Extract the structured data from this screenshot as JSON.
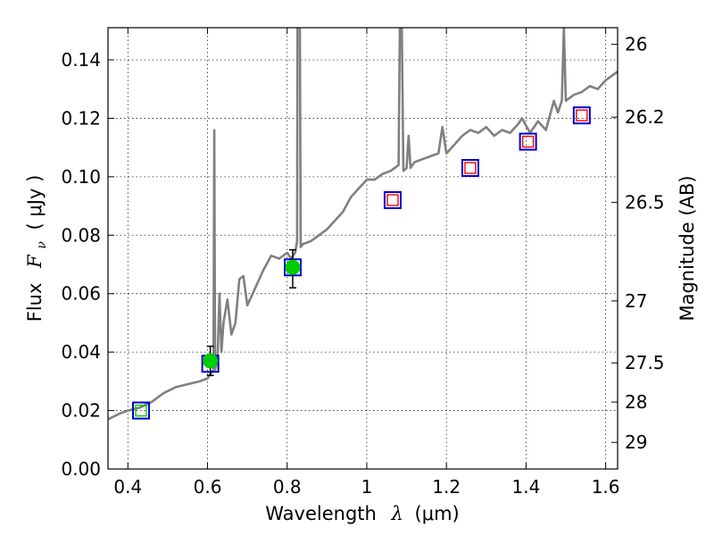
{
  "chart_data": {
    "type": "scatter",
    "xlabel_text": "Wavelength",
    "xlabel_symbol": "λ",
    "xlabel_unit": "(μm)",
    "ylabel_text": "Flux",
    "ylabel_symbol": "F",
    "ylabel_subscript": "ν",
    "ylabel_unit": "( μJy )",
    "y2label": "Magnitude (AB)",
    "xlim": [
      0.35,
      1.63
    ],
    "ylim": [
      0.0,
      0.151
    ],
    "grid": true,
    "x_ticks": [
      {
        "value": 0.4,
        "label": "0.4"
      },
      {
        "value": 0.6,
        "label": "0.6"
      },
      {
        "value": 0.8,
        "label": "0.8"
      },
      {
        "value": 1.0,
        "label": "1"
      },
      {
        "value": 1.2,
        "label": "1.2"
      },
      {
        "value": 1.4,
        "label": "1.4"
      },
      {
        "value": 1.6,
        "label": "1.6"
      }
    ],
    "y_ticks": [
      {
        "value": 0.0,
        "label": "0.00"
      },
      {
        "value": 0.02,
        "label": "0.02"
      },
      {
        "value": 0.04,
        "label": "0.04"
      },
      {
        "value": 0.06,
        "label": "0.06"
      },
      {
        "value": 0.08,
        "label": "0.08"
      },
      {
        "value": 0.1,
        "label": "0.10"
      },
      {
        "value": 0.12,
        "label": "0.12"
      },
      {
        "value": 0.14,
        "label": "0.14"
      }
    ],
    "y2_ticks": [
      {
        "flux": 0.1453,
        "label": "26"
      },
      {
        "flux": 0.1204,
        "label": "26.2"
      },
      {
        "flux": 0.0912,
        "label": "26.5"
      },
      {
        "flux": 0.0575,
        "label": "27"
      },
      {
        "flux": 0.0363,
        "label": "27.5"
      },
      {
        "flux": 0.0229,
        "label": "28"
      },
      {
        "flux": 0.0091,
        "label": "29"
      }
    ],
    "series": [
      {
        "name": "model spectrum",
        "kind": "line",
        "color": "#808080",
        "points": [
          [
            0.35,
            0.017
          ],
          [
            0.38,
            0.019
          ],
          [
            0.4,
            0.02
          ],
          [
            0.43,
            0.021
          ],
          [
            0.46,
            0.023
          ],
          [
            0.49,
            0.026
          ],
          [
            0.52,
            0.028
          ],
          [
            0.55,
            0.029
          ],
          [
            0.58,
            0.03
          ],
          [
            0.6,
            0.031
          ],
          [
            0.61,
            0.033
          ],
          [
            0.615,
            0.034
          ],
          [
            0.617,
            0.116
          ],
          [
            0.619,
            0.034
          ],
          [
            0.625,
            0.037
          ],
          [
            0.63,
            0.06
          ],
          [
            0.635,
            0.04
          ],
          [
            0.64,
            0.05
          ],
          [
            0.65,
            0.058
          ],
          [
            0.66,
            0.046
          ],
          [
            0.67,
            0.05
          ],
          [
            0.68,
            0.065
          ],
          [
            0.69,
            0.066
          ],
          [
            0.7,
            0.056
          ],
          [
            0.72,
            0.062
          ],
          [
            0.74,
            0.068
          ],
          [
            0.76,
            0.073
          ],
          [
            0.78,
            0.072
          ],
          [
            0.8,
            0.074
          ],
          [
            0.81,
            0.072
          ],
          [
            0.82,
            0.074
          ],
          [
            0.825,
            0.078
          ],
          [
            0.826,
            0.151
          ],
          [
            0.832,
            0.151
          ],
          [
            0.834,
            0.076
          ],
          [
            0.84,
            0.077
          ],
          [
            0.86,
            0.078
          ],
          [
            0.88,
            0.08
          ],
          [
            0.9,
            0.082
          ],
          [
            0.92,
            0.085
          ],
          [
            0.94,
            0.088
          ],
          [
            0.96,
            0.093
          ],
          [
            0.98,
            0.096
          ],
          [
            1.0,
            0.099
          ],
          [
            1.02,
            0.099
          ],
          [
            1.04,
            0.101
          ],
          [
            1.06,
            0.102
          ],
          [
            1.08,
            0.104
          ],
          [
            1.083,
            0.151
          ],
          [
            1.088,
            0.151
          ],
          [
            1.092,
            0.102
          ],
          [
            1.1,
            0.103
          ],
          [
            1.105,
            0.114
          ],
          [
            1.11,
            0.103
          ],
          [
            1.12,
            0.105
          ],
          [
            1.14,
            0.106
          ],
          [
            1.16,
            0.107
          ],
          [
            1.18,
            0.108
          ],
          [
            1.19,
            0.117
          ],
          [
            1.2,
            0.108
          ],
          [
            1.22,
            0.111
          ],
          [
            1.24,
            0.114
          ],
          [
            1.26,
            0.116
          ],
          [
            1.28,
            0.115
          ],
          [
            1.3,
            0.117
          ],
          [
            1.32,
            0.114
          ],
          [
            1.34,
            0.116
          ],
          [
            1.36,
            0.115
          ],
          [
            1.38,
            0.118
          ],
          [
            1.39,
            0.12
          ],
          [
            1.41,
            0.115
          ],
          [
            1.43,
            0.119
          ],
          [
            1.45,
            0.116
          ],
          [
            1.47,
            0.126
          ],
          [
            1.48,
            0.122
          ],
          [
            1.49,
            0.126
          ],
          [
            1.495,
            0.151
          ],
          [
            1.5,
            0.126
          ],
          [
            1.52,
            0.128
          ],
          [
            1.54,
            0.129
          ],
          [
            1.56,
            0.131
          ],
          [
            1.58,
            0.13
          ],
          [
            1.6,
            0.133
          ],
          [
            1.63,
            0.136
          ]
        ]
      },
      {
        "name": "blue squares",
        "kind": "marker",
        "marker": "square",
        "color": "#0000cc",
        "points": [
          [
            0.433,
            0.02
          ],
          [
            0.607,
            0.036
          ],
          [
            0.814,
            0.069
          ],
          [
            1.065,
            0.092
          ],
          [
            1.26,
            0.103
          ],
          [
            1.405,
            0.112
          ],
          [
            1.54,
            0.121
          ]
        ]
      },
      {
        "name": "red squares",
        "kind": "marker",
        "marker": "square-small",
        "color": "#ff0000",
        "points": [
          [
            1.065,
            0.092
          ],
          [
            1.26,
            0.103
          ],
          [
            1.405,
            0.112
          ],
          [
            1.54,
            0.121
          ]
        ]
      },
      {
        "name": "green points",
        "kind": "marker",
        "marker": "circle",
        "color": "#00cc00",
        "points": [
          {
            "x": 0.607,
            "y": 0.037,
            "yerr_low": 0.032,
            "yerr_high": 0.042
          },
          {
            "x": 0.814,
            "y": 0.069,
            "yerr_low": 0.062,
            "yerr_high": 0.075
          }
        ]
      },
      {
        "name": "green open square",
        "kind": "marker",
        "marker": "square-small",
        "color": "#00cc00",
        "points": [
          [
            0.433,
            0.02
          ]
        ]
      }
    ]
  }
}
